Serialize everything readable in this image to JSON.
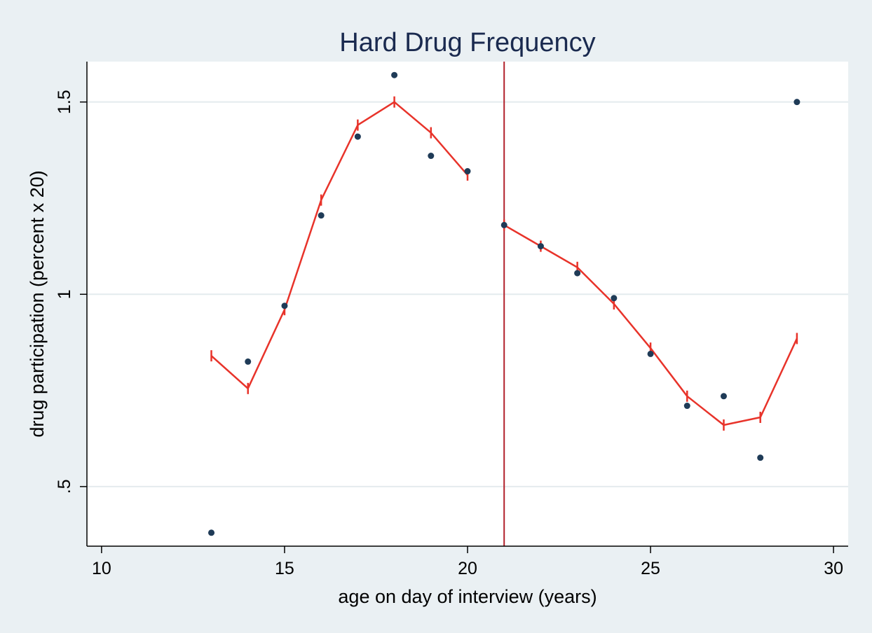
{
  "chart_data": {
    "type": "scatter",
    "title": "Hard Drug Frequency",
    "xlabel": "age on day of interview (years)",
    "ylabel": "drug participation (percent x 20)",
    "xlim": [
      9.6,
      30.4
    ],
    "ylim": [
      0.345,
      1.605
    ],
    "x_ticks": [
      {
        "value": 10,
        "label": "10"
      },
      {
        "value": 15,
        "label": "15"
      },
      {
        "value": 20,
        "label": "20"
      },
      {
        "value": 25,
        "label": "25"
      },
      {
        "value": 30,
        "label": "30"
      }
    ],
    "y_ticks": [
      {
        "value": 0.5,
        "label": ".5"
      },
      {
        "value": 1,
        "label": "1"
      },
      {
        "value": 1.5,
        "label": "1.5"
      }
    ],
    "grid": "horizontal",
    "cutoff_x": 21,
    "series": [
      {
        "kind": "scatter",
        "color": "#1f3b57",
        "points": [
          {
            "x": 13,
            "y": 0.38
          },
          {
            "x": 14,
            "y": 0.825
          },
          {
            "x": 15,
            "y": 0.97
          },
          {
            "x": 16,
            "y": 1.205
          },
          {
            "x": 17,
            "y": 1.41
          },
          {
            "x": 18,
            "y": 1.57
          },
          {
            "x": 19,
            "y": 1.36
          },
          {
            "x": 20,
            "y": 1.32
          },
          {
            "x": 21,
            "y": 1.18
          },
          {
            "x": 22,
            "y": 1.125
          },
          {
            "x": 23,
            "y": 1.055
          },
          {
            "x": 24,
            "y": 0.99
          },
          {
            "x": 25,
            "y": 0.845
          },
          {
            "x": 26,
            "y": 0.71
          },
          {
            "x": 27,
            "y": 0.735
          },
          {
            "x": 28,
            "y": 0.575
          },
          {
            "x": 29,
            "y": 1.5
          }
        ]
      },
      {
        "kind": "line",
        "color": "#e8332a",
        "points": [
          {
            "x": 13,
            "y": 0.84
          },
          {
            "x": 14,
            "y": 0.755
          },
          {
            "x": 15,
            "y": 0.96
          },
          {
            "x": 16,
            "y": 1.245
          },
          {
            "x": 17,
            "y": 1.44
          },
          {
            "x": 18,
            "y": 1.5
          },
          {
            "x": 19,
            "y": 1.42
          },
          {
            "x": 20,
            "y": 1.31
          }
        ]
      },
      {
        "kind": "line",
        "color": "#e8332a",
        "points": [
          {
            "x": 21,
            "y": 1.18
          },
          {
            "x": 22,
            "y": 1.125
          },
          {
            "x": 23,
            "y": 1.07
          },
          {
            "x": 24,
            "y": 0.975
          },
          {
            "x": 25,
            "y": 0.86
          },
          {
            "x": 26,
            "y": 0.735
          },
          {
            "x": 27,
            "y": 0.66
          },
          {
            "x": 28,
            "y": 0.68
          },
          {
            "x": 29,
            "y": 0.885
          }
        ]
      }
    ],
    "colors": {
      "background": "#eaf0f3",
      "plot_background": "#ffffff",
      "gridline": "#e4ebee",
      "cutoff_line": "#b2202a",
      "title": "#1a2a4f"
    }
  }
}
